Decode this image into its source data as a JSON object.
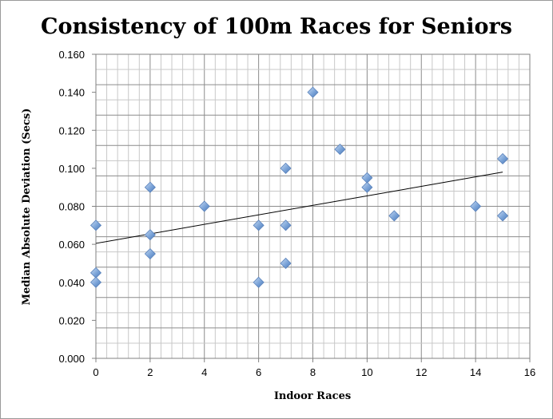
{
  "chart_data": {
    "type": "scatter",
    "title": "Consistency of 100m Races for Seniors",
    "xlabel": "Indoor Races",
    "ylabel": "Median Absolute Deviation (Secs)",
    "xlim": [
      0,
      16
    ],
    "ylim": [
      0.0,
      0.16
    ],
    "x_ticks": [
      "0",
      "2",
      "4",
      "6",
      "8",
      "10",
      "12",
      "14",
      "16"
    ],
    "y_ticks": [
      "0.000",
      "0.020",
      "0.040",
      "0.060",
      "0.080",
      "0.100",
      "0.120",
      "0.140",
      "0.160"
    ],
    "grid": true,
    "marker": "diamond",
    "marker_color": "#7aa3d8",
    "points": [
      {
        "x": 0,
        "y": 0.07
      },
      {
        "x": 0,
        "y": 0.045
      },
      {
        "x": 0,
        "y": 0.04
      },
      {
        "x": 2,
        "y": 0.09
      },
      {
        "x": 2,
        "y": 0.065
      },
      {
        "x": 2,
        "y": 0.055
      },
      {
        "x": 4,
        "y": 0.08
      },
      {
        "x": 6,
        "y": 0.07
      },
      {
        "x": 6,
        "y": 0.04
      },
      {
        "x": 7,
        "y": 0.1
      },
      {
        "x": 7,
        "y": 0.07
      },
      {
        "x": 7,
        "y": 0.05
      },
      {
        "x": 8,
        "y": 0.14
      },
      {
        "x": 9,
        "y": 0.11
      },
      {
        "x": 10,
        "y": 0.095
      },
      {
        "x": 10,
        "y": 0.09
      },
      {
        "x": 11,
        "y": 0.075
      },
      {
        "x": 14,
        "y": 0.08
      },
      {
        "x": 15,
        "y": 0.105
      },
      {
        "x": 15,
        "y": 0.075
      }
    ],
    "trendline": {
      "x_start": 0,
      "y_start": 0.0605,
      "x_end": 15,
      "y_end": 0.098
    }
  }
}
